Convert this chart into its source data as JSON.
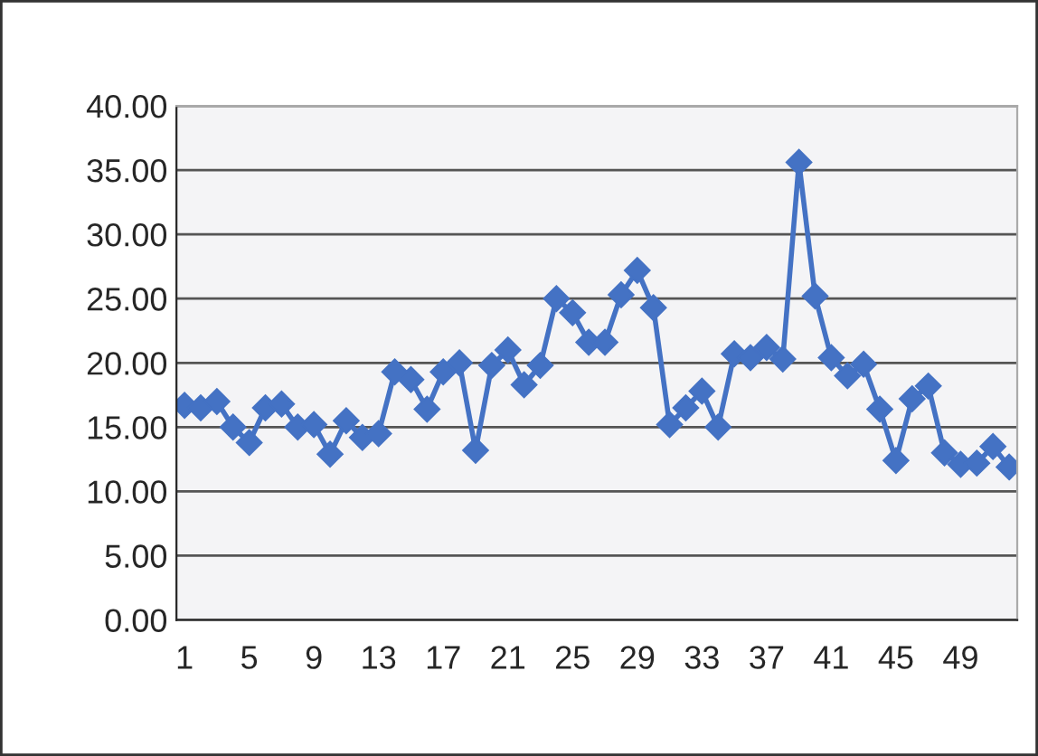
{
  "chart_data": {
    "type": "line",
    "categories": [
      "1",
      null,
      null,
      null,
      "5",
      null,
      null,
      null,
      "9",
      null,
      null,
      null,
      "13",
      null,
      null,
      null,
      "17",
      null,
      null,
      null,
      "21",
      null,
      null,
      null,
      "25",
      null,
      null,
      null,
      "29",
      null,
      null,
      null,
      "33",
      null,
      null,
      null,
      "37",
      null,
      null,
      null,
      "41",
      null,
      null,
      null,
      "45",
      null,
      null,
      null,
      "49",
      null,
      null,
      null
    ],
    "series": [
      {
        "color": "#4472c4",
        "values": [
          16.7,
          16.5,
          17.0,
          15.0,
          13.8,
          16.5,
          16.8,
          15.0,
          15.2,
          12.9,
          15.5,
          14.2,
          14.5,
          19.3,
          18.7,
          16.4,
          19.3,
          20.0,
          13.2,
          19.8,
          21.0,
          18.3,
          19.8,
          25.0,
          23.9,
          21.6,
          21.6,
          25.3,
          27.2,
          24.3,
          15.2,
          16.5,
          17.8,
          15.0,
          20.7,
          20.4,
          21.2,
          20.3,
          35.6,
          25.2,
          20.4,
          19.0,
          19.9,
          16.4,
          12.4,
          17.2,
          18.2,
          13.0,
          12.1,
          12.2,
          13.5,
          11.9
        ]
      }
    ],
    "ylim": [
      0,
      40
    ],
    "yticks": [
      {
        "value": 0,
        "label": "0.00"
      },
      {
        "value": 5,
        "label": "5.00"
      },
      {
        "value": 10,
        "label": "10.00"
      },
      {
        "value": 15,
        "label": "15.00"
      },
      {
        "value": 20,
        "label": "20.00"
      },
      {
        "value": 25,
        "label": "25.00"
      },
      {
        "value": 30,
        "label": "30.00"
      },
      {
        "value": 35,
        "label": "35.00"
      },
      {
        "value": 40,
        "label": "40.00"
      }
    ],
    "grid": "y",
    "marker": "diamond",
    "line_style": "solid",
    "legend": false
  }
}
